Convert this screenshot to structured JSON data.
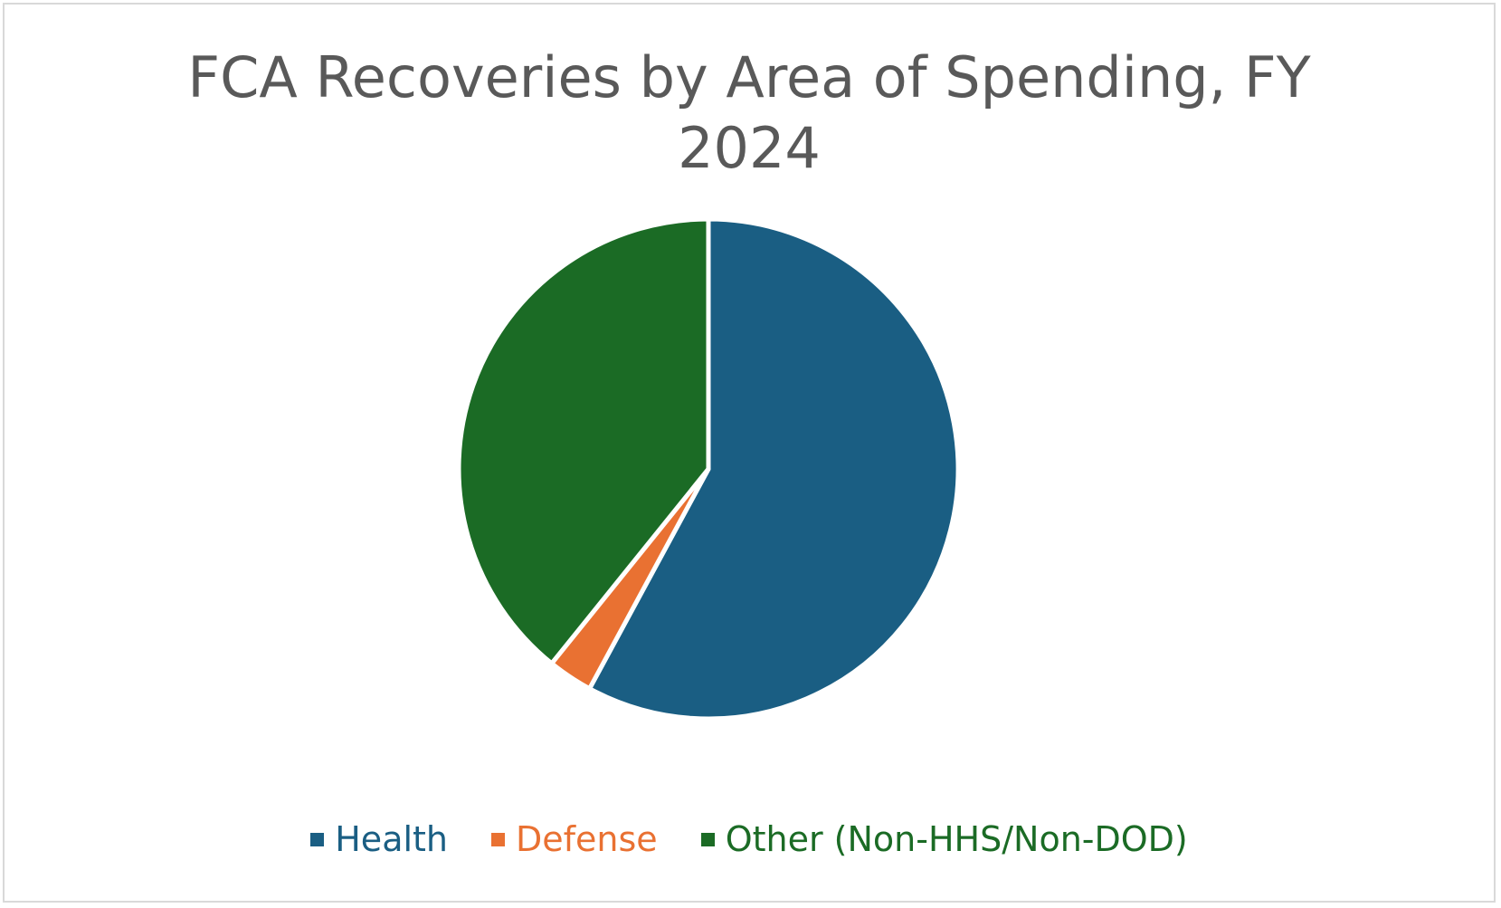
{
  "chart_data": {
    "type": "pie",
    "title_lines": [
      "FCA Recoveries by Area of Spending, FY",
      "2024"
    ],
    "categories": [
      "Health",
      "Defense",
      "Other (Non-HHS/Non-DOD)"
    ],
    "values": [
      57.9,
      2.9,
      39.2
    ],
    "colors": [
      "#1a5e83",
      "#e97132",
      "#1b6b25"
    ],
    "start_angle_deg": 0,
    "direction": "clockwise",
    "legend": "bottom",
    "data_labels": false
  }
}
